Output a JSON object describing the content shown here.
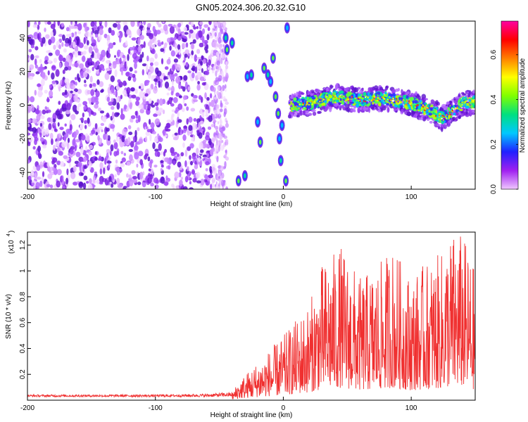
{
  "title": "GN05.2024.306.20.32.G10",
  "chart_data": [
    {
      "type": "heatmap",
      "xlabel": "Height of straight line (km)",
      "ylabel": "Frequency (Hz)",
      "xlim": [
        -200,
        150
      ],
      "ylim": [
        -50,
        50
      ],
      "xticks": [
        -200,
        -100,
        0,
        100
      ],
      "yticks": [
        -40,
        -20,
        0,
        20,
        40
      ],
      "colorbar": {
        "label": "Normalized spectral amplitude",
        "range": [
          0.0,
          0.75
        ],
        "ticks": [
          0.0,
          0.2,
          0.4,
          0.6
        ],
        "colors": [
          "#f0c8ff",
          "#a020f0",
          "#2020ff",
          "#00c8ff",
          "#00e080",
          "#80ff00",
          "#ffff00",
          "#ff8000",
          "#ff0000",
          "#ff00a0"
        ]
      },
      "features": {
        "noise_region_x": [
          -200,
          -55
        ],
        "gap_region_x": [
          -35,
          5
        ],
        "signal_band": {
          "x": [
            5,
            20,
            40,
            60,
            80,
            100,
            115,
            125,
            140,
            150
          ],
          "freq": [
            0,
            1,
            5,
            3,
            4,
            1,
            -3,
            -8,
            1,
            2
          ]
        }
      }
    },
    {
      "type": "line",
      "xlabel": "Height of straight line (km)",
      "ylabel": "SNR (10 * v/v)",
      "scale_label": "(x10",
      "scale_exp": "4",
      "scale_close": ")",
      "xlim": [
        -200,
        150
      ],
      "ylim": [
        0,
        1.3
      ],
      "xticks": [
        -200,
        -100,
        0,
        100
      ],
      "yticks": [
        0.2,
        0.4,
        0.6,
        0.8,
        1.0,
        1.2
      ],
      "line_color": "#f03030",
      "series": [
        {
          "x": [
            -200,
            -150,
            -100,
            -60,
            -50,
            -40,
            -35,
            -20,
            0,
            20,
            30,
            45,
            60,
            75,
            85,
            100,
            110,
            125,
            130,
            140,
            150
          ],
          "values": [
            0.03,
            0.03,
            0.03,
            0.04,
            0.05,
            0.06,
            0.15,
            0.3,
            0.5,
            0.75,
            1.05,
            1.2,
            0.95,
            1.05,
            1.2,
            0.95,
            1.05,
            1.15,
            1.3,
            1.3,
            1.0
          ]
        }
      ]
    }
  ]
}
